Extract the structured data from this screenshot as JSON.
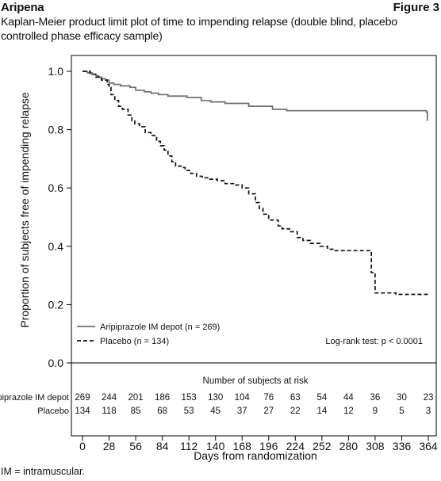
{
  "header": {
    "brand": "Aripena",
    "figure_label": "Figure 3",
    "title": "Kaplan-Meier product limit plot of time to impending relapse (double blind, placebo controlled phase efficacy sample)"
  },
  "footnote": "IM = intramuscular.",
  "chart_data": {
    "type": "line",
    "subtype": "kaplan-meier step",
    "xlabel": "Days from randomization",
    "ylabel": "Proportion of subjects free of impending relapse",
    "xlim": [
      0,
      364
    ],
    "ylim": [
      0.0,
      1.0
    ],
    "x_ticks": [
      0,
      28,
      56,
      84,
      112,
      140,
      168,
      196,
      224,
      252,
      280,
      308,
      336,
      364
    ],
    "y_ticks": [
      "0.0",
      "0.2",
      "0.4",
      "0.6",
      "0.8",
      "1.0"
    ],
    "grid": false,
    "legend_position": "bottom-left",
    "annotation": "Log-rank test: p < 0.0001",
    "series": [
      {
        "name": "Aripiprazole IM depot (n = 269)",
        "color": "#6e6e6e",
        "dash": "solid",
        "x": [
          0,
          5,
          10,
          14,
          17,
          20,
          24,
          28,
          33,
          40,
          50,
          56,
          65,
          72,
          80,
          90,
          110,
          125,
          135,
          150,
          175,
          200,
          215,
          240,
          260,
          300,
          330,
          362,
          363
        ],
        "y": [
          1.0,
          0.995,
          0.99,
          0.985,
          0.98,
          0.975,
          0.97,
          0.96,
          0.955,
          0.95,
          0.945,
          0.935,
          0.93,
          0.925,
          0.92,
          0.915,
          0.91,
          0.9,
          0.895,
          0.89,
          0.88,
          0.87,
          0.865,
          0.865,
          0.865,
          0.865,
          0.865,
          0.86,
          0.83
        ]
      },
      {
        "name": "Placebo (n = 134)",
        "color": "#111111",
        "dash": "dashed",
        "x": [
          0,
          8,
          14,
          20,
          26,
          28,
          30,
          34,
          38,
          42,
          48,
          52,
          55,
          60,
          66,
          72,
          78,
          82,
          86,
          90,
          94,
          98,
          104,
          108,
          114,
          120,
          126,
          134,
          142,
          150,
          160,
          168,
          175,
          182,
          186,
          190,
          196,
          206,
          210,
          218,
          226,
          232,
          240,
          250,
          258,
          266,
          280,
          290,
          300,
          304,
          308,
          318,
          330,
          345,
          364
        ],
        "y": [
          1.0,
          0.99,
          0.98,
          0.97,
          0.955,
          0.945,
          0.92,
          0.9,
          0.88,
          0.87,
          0.85,
          0.83,
          0.82,
          0.81,
          0.79,
          0.78,
          0.76,
          0.745,
          0.73,
          0.71,
          0.69,
          0.675,
          0.67,
          0.66,
          0.65,
          0.64,
          0.635,
          0.63,
          0.625,
          0.615,
          0.61,
          0.6,
          0.58,
          0.55,
          0.53,
          0.51,
          0.49,
          0.47,
          0.46,
          0.45,
          0.43,
          0.42,
          0.41,
          0.4,
          0.39,
          0.385,
          0.385,
          0.385,
          0.385,
          0.31,
          0.24,
          0.24,
          0.235,
          0.235,
          0.235
        ]
      }
    ],
    "risk_table": {
      "title": "Number of subjects at risk",
      "rows": [
        {
          "label": "Aripiprazole IM depot",
          "values": [
            "269",
            "244",
            "201",
            "186",
            "153",
            "130",
            "104",
            "76",
            "63",
            "54",
            "44",
            "36",
            "30",
            "23"
          ]
        },
        {
          "label": "Placebo",
          "values": [
            "134",
            "118",
            "85",
            "68",
            "53",
            "45",
            "37",
            "27",
            "22",
            "14",
            "12",
            "9",
            "5",
            "3"
          ]
        }
      ]
    }
  }
}
